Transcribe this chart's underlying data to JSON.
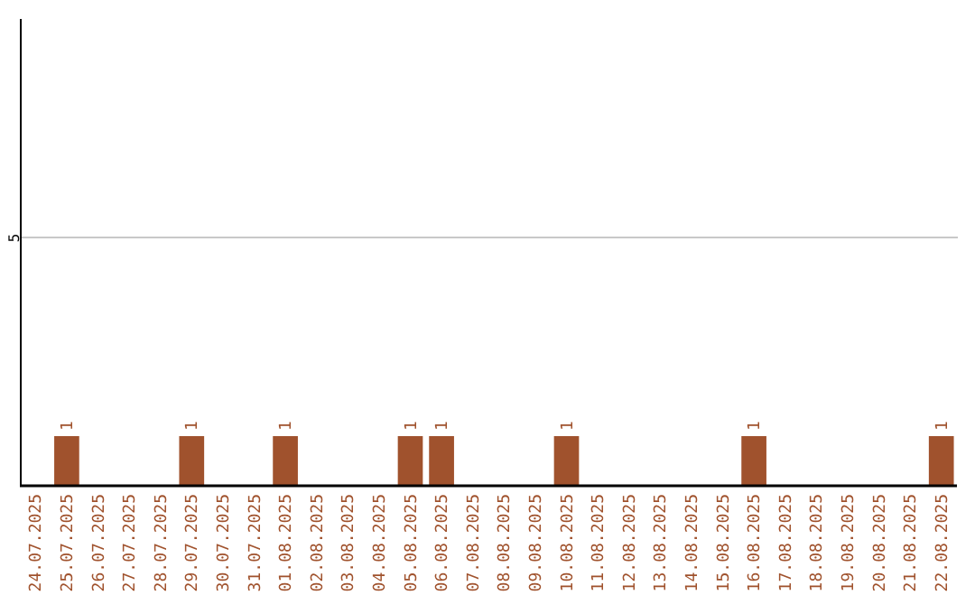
{
  "chart_data": {
    "type": "bar",
    "categories": [
      "24.07.2025",
      "25.07.2025",
      "26.07.2025",
      "27.07.2025",
      "28.07.2025",
      "29.07.2025",
      "30.07.2025",
      "31.07.2025",
      "01.08.2025",
      "02.08.2025",
      "03.08.2025",
      "04.08.2025",
      "05.08.2025",
      "06.08.2025",
      "07.08.2025",
      "08.08.2025",
      "09.08.2025",
      "10.08.2025",
      "11.08.2025",
      "12.08.2025",
      "13.08.2025",
      "14.08.2025",
      "15.08.2025",
      "16.08.2025",
      "17.08.2025",
      "18.08.2025",
      "19.08.2025",
      "20.08.2025",
      "21.08.2025",
      "22.08.2025"
    ],
    "values": [
      0,
      1,
      0,
      0,
      0,
      1,
      0,
      0,
      1,
      0,
      0,
      0,
      1,
      1,
      0,
      0,
      0,
      1,
      0,
      0,
      0,
      0,
      0,
      1,
      0,
      0,
      0,
      0,
      0,
      1
    ],
    "value_labels": [
      null,
      "1",
      null,
      null,
      null,
      "1",
      null,
      null,
      "1",
      null,
      null,
      null,
      "1",
      "1",
      null,
      null,
      null,
      "1",
      null,
      null,
      null,
      null,
      null,
      "1",
      null,
      null,
      null,
      null,
      null,
      "1"
    ],
    "color": "#a0522d",
    "ylim": [
      0,
      9.4
    ],
    "yticks": [
      5
    ],
    "grid": "y"
  }
}
